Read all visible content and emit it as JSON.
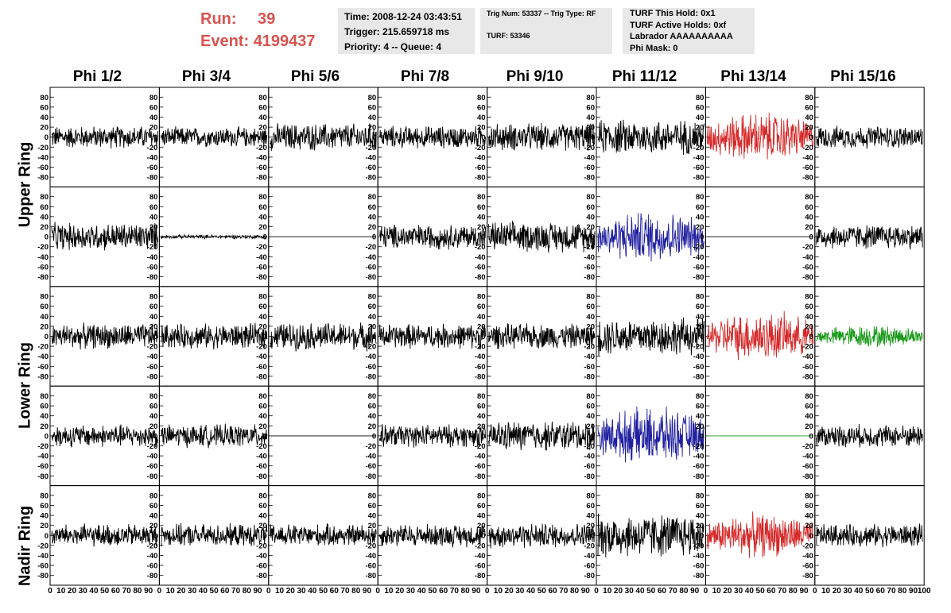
{
  "header": {
    "run_label": "Run:",
    "run_value": "39",
    "event_label": "Event:",
    "event_value": "4199437",
    "time": "Time: 2008-12-24 03:43:51",
    "trigger": "Trigger: 215.659718 ms",
    "priority": "Priority: 4 -- Queue: 4",
    "trig_num": "Trig Num: 53337 -- Trig Type: RF",
    "turf": "TURF: 53346",
    "turf_this_hold": "TURF This Hold: 0x1",
    "turf_active_holds": "TURF Active Holds: 0xf",
    "labrador": "Labrador AAAAAAAAAA",
    "phi_mask": "Phi Mask: 0"
  },
  "columns": [
    "Phi 1/2",
    "Phi 3/4",
    "Phi 5/6",
    "Phi 7/8",
    "Phi 9/10",
    "Phi 11/12",
    "Phi 13/14",
    "Phi 15/16"
  ],
  "rings": [
    "Upper Ring",
    "Lower Ring",
    "Nadir Ring"
  ],
  "colors": {
    "black": "#000000",
    "red": "#d62828",
    "blue": "#2020a0",
    "green": "#1a9a1a",
    "header_red": "#d9534f",
    "box_bg": "#e8e8e8"
  },
  "chart_data": {
    "type": "line",
    "description_rows": 5,
    "description_cols": 8,
    "ylim": [
      -90,
      90
    ],
    "y_ticks": [
      80,
      60,
      40,
      20,
      0,
      -20,
      -40,
      -60,
      -80
    ],
    "xlim": [
      0,
      100
    ],
    "x_tick_labels": [
      "0",
      "10",
      "20",
      "30",
      "40",
      "50",
      "60",
      "70",
      "80",
      "90",
      "100"
    ],
    "panels": [
      [
        {
          "amp": 18,
          "color": "black"
        },
        {
          "amp": 16,
          "color": "black"
        },
        {
          "amp": 22,
          "color": "black"
        },
        {
          "amp": 18,
          "color": "black"
        },
        {
          "amp": 22,
          "color": "black"
        },
        {
          "amp": 28,
          "color": "black"
        },
        {
          "amp": 40,
          "color": "red"
        },
        {
          "amp": 18,
          "color": "black"
        }
      ],
      [
        {
          "amp": 22,
          "color": "black"
        },
        {
          "amp": 3,
          "color": "black"
        },
        {
          "amp": 0,
          "color": "black"
        },
        {
          "amp": 20,
          "color": "black"
        },
        {
          "amp": 24,
          "color": "black"
        },
        {
          "amp": 42,
          "color": "blue"
        },
        {
          "amp": 0,
          "color": "black"
        },
        {
          "amp": 20,
          "color": "black"
        }
      ],
      [
        {
          "amp": 20,
          "color": "black"
        },
        {
          "amp": 20,
          "color": "black"
        },
        {
          "amp": 22,
          "color": "black"
        },
        {
          "amp": 20,
          "color": "black"
        },
        {
          "amp": 20,
          "color": "black"
        },
        {
          "amp": 30,
          "color": "black"
        },
        {
          "amp": 40,
          "color": "red"
        },
        {
          "amp": 18,
          "color": "green"
        }
      ],
      [
        {
          "amp": 18,
          "color": "black"
        },
        {
          "amp": 18,
          "color": "black"
        },
        {
          "amp": 0,
          "color": "black"
        },
        {
          "amp": 18,
          "color": "black"
        },
        {
          "amp": 24,
          "color": "black"
        },
        {
          "amp": 45,
          "color": "blue"
        },
        {
          "amp": 0,
          "color": "green"
        },
        {
          "amp": 18,
          "color": "black"
        }
      ],
      [
        {
          "amp": 18,
          "color": "black"
        },
        {
          "amp": 18,
          "color": "black"
        },
        {
          "amp": 18,
          "color": "black"
        },
        {
          "amp": 18,
          "color": "black"
        },
        {
          "amp": 20,
          "color": "black"
        },
        {
          "amp": 35,
          "color": "black"
        },
        {
          "amp": 35,
          "color": "red"
        },
        {
          "amp": 18,
          "color": "black"
        }
      ]
    ]
  }
}
